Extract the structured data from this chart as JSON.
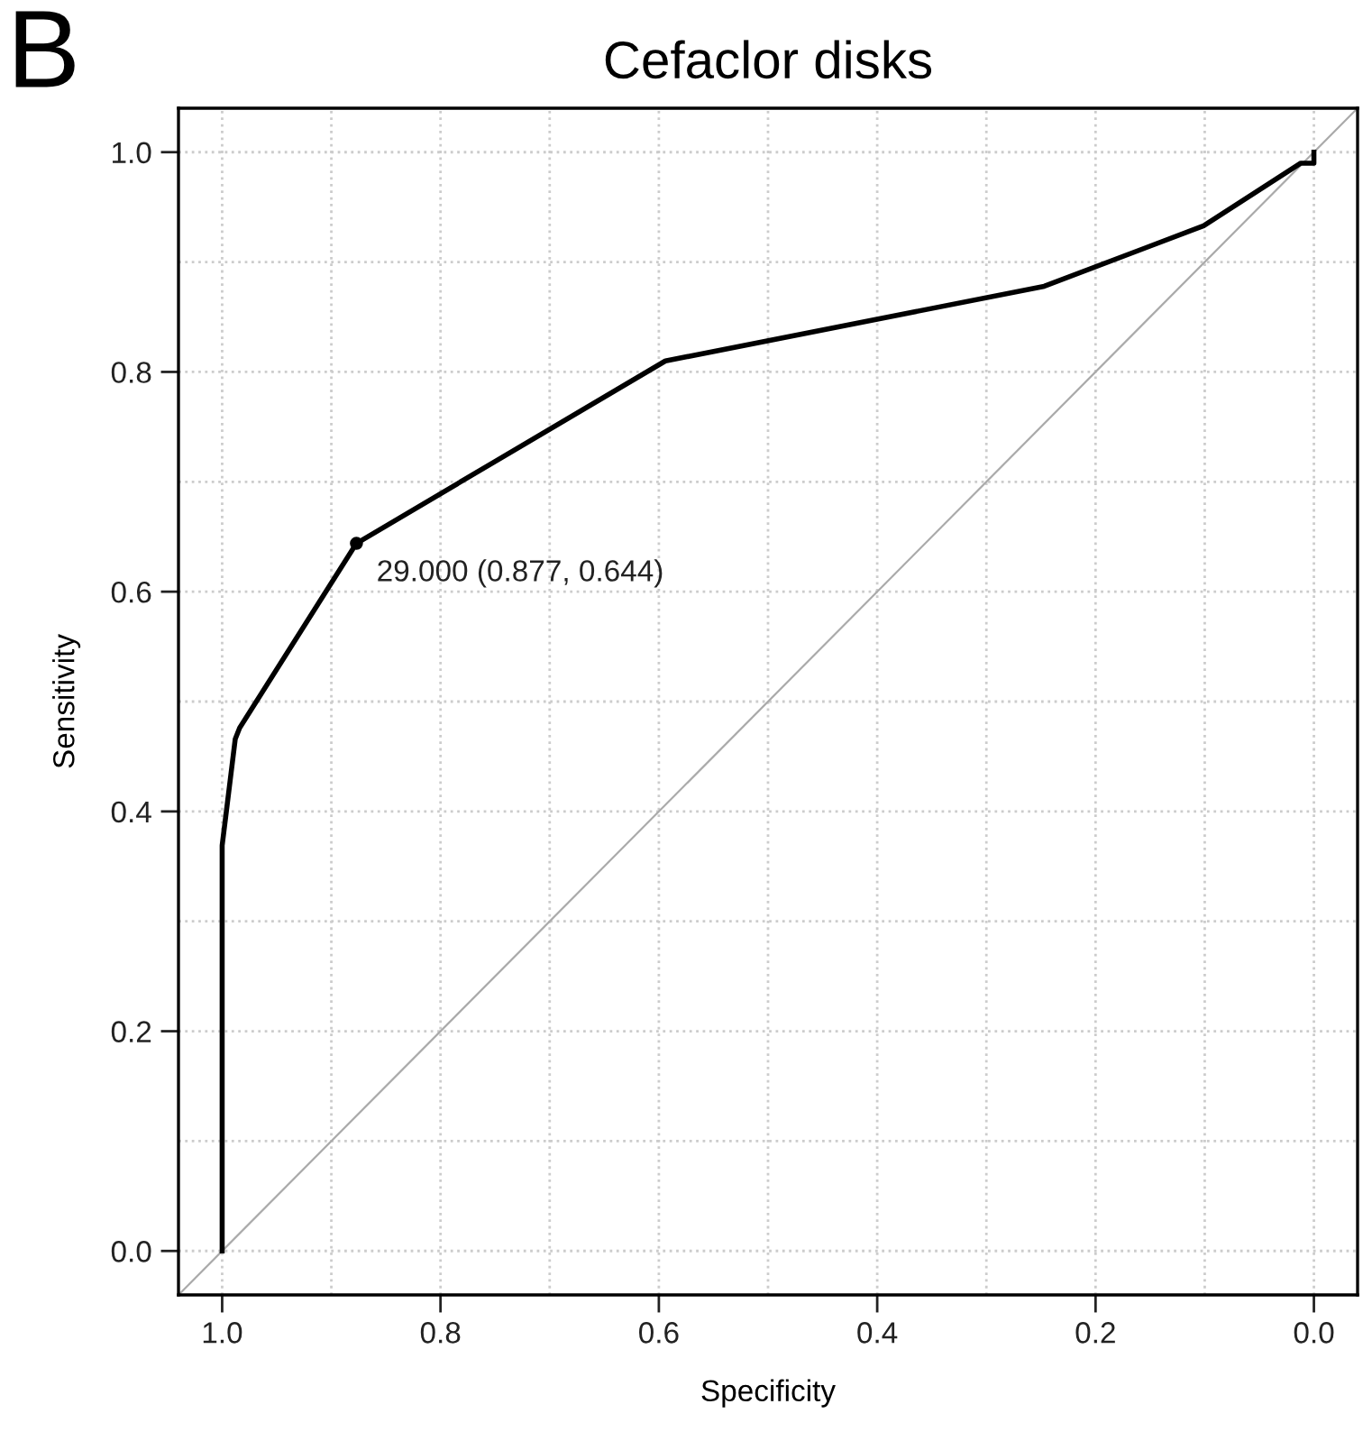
{
  "chart_data": {
    "type": "line",
    "title": "Cefaclor disks",
    "xlabel": "Specificity",
    "ylabel": "Sensitivity",
    "annotations": [
      "B",
      {
        "text": "29.000 (0.877, 0.644)",
        "x": 0.877,
        "y": 0.644
      }
    ],
    "series": [
      {
        "color": "#000000",
        "x": [
          1.0,
          1.0,
          0.988,
          0.984,
          0.877,
          0.594,
          0.247,
          0.101,
          0.012,
          0.0,
          0.0
        ],
        "values": [
          0.0,
          0.369,
          0.466,
          0.476,
          0.644,
          0.81,
          0.878,
          0.933,
          0.99,
          0.99,
          1.0
        ]
      },
      {
        "type": "line",
        "color": "#aaaaaa",
        "x": [
          1.04,
          -0.04
        ],
        "values": [
          -0.04,
          1.04
        ]
      },
      {
        "type": "scatter",
        "color": "#000000",
        "x": [
          0.877
        ],
        "values": [
          0.644
        ]
      }
    ],
    "xlim": [
      1.04,
      -0.04
    ],
    "ylim": [
      -0.04,
      1.04
    ],
    "xticks": [
      {
        "value": 1.0,
        "label": "1.0"
      },
      {
        "value": 0.8,
        "label": "0.8"
      },
      {
        "value": 0.6,
        "label": "0.6"
      },
      {
        "value": 0.4,
        "label": "0.4"
      },
      {
        "value": 0.2,
        "label": "0.2"
      },
      {
        "value": 0.0,
        "label": "0.0"
      }
    ],
    "yticks": [
      {
        "value": 0.0,
        "label": "0.0"
      },
      {
        "value": 0.2,
        "label": "0.2"
      },
      {
        "value": 0.4,
        "label": "0.4"
      },
      {
        "value": 0.6,
        "label": "0.6"
      },
      {
        "value": 0.8,
        "label": "0.8"
      },
      {
        "value": 1.0,
        "label": "1.0"
      }
    ],
    "grid": true
  }
}
